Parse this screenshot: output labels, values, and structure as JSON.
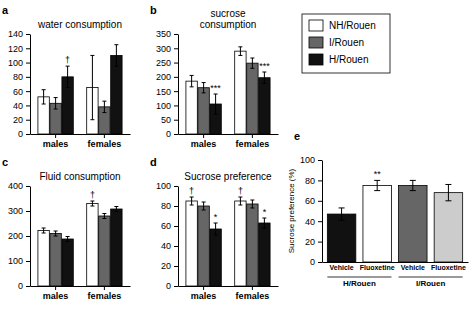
{
  "chart_data": [
    {
      "type": "bar",
      "title": "water consumption",
      "legend": "upper right",
      "categories": [
        "males",
        "females"
      ],
      "series": [
        {
          "name": "NH/Rouen",
          "color": "#ffffff",
          "values": [
            52,
            65
          ],
          "errors": [
            10,
            45
          ]
        },
        {
          "name": "I/Rouen",
          "color": "#666666",
          "values": [
            43,
            38
          ],
          "errors": [
            8,
            8
          ]
        },
        {
          "name": "H/Rouen",
          "color": "#111111",
          "values": [
            80,
            110
          ],
          "errors": [
            15,
            15
          ]
        }
      ],
      "ylim": [
        0,
        140
      ],
      "yticks": [
        0,
        20,
        40,
        60,
        80,
        100,
        120,
        140
      ],
      "annotations": [
        {
          "text": "a"
        },
        {
          "text": "†",
          "series": "H/Rouen",
          "category": "males"
        }
      ]
    },
    {
      "type": "bar",
      "title": "sucrose\nconsumption",
      "categories": [
        "males",
        "females"
      ],
      "series": [
        {
          "name": "NH/Rouen",
          "color": "#ffffff",
          "values": [
            185,
            290
          ],
          "errors": [
            20,
            15
          ]
        },
        {
          "name": "I/Rouen",
          "color": "#666666",
          "values": [
            162,
            248
          ],
          "errors": [
            18,
            18
          ]
        },
        {
          "name": "H/Rouen",
          "color": "#111111",
          "values": [
            105,
            197
          ],
          "errors": [
            35,
            20
          ]
        }
      ],
      "ylim": [
        0,
        350
      ],
      "yticks": [
        0,
        50,
        100,
        150,
        200,
        250,
        300,
        350
      ],
      "annotations": [
        {
          "text": "b"
        },
        {
          "text": "***",
          "series": "H/Rouen",
          "category": "males"
        },
        {
          "text": "***",
          "series": "H/Rouen",
          "category": "females"
        }
      ]
    },
    {
      "type": "bar",
      "title": "Fluid consumption",
      "categories": [
        "males",
        "females"
      ],
      "series": [
        {
          "name": "NH/Rouen",
          "color": "#ffffff",
          "values": [
            222,
            330
          ],
          "errors": [
            10,
            10
          ]
        },
        {
          "name": "I/Rouen",
          "color": "#666666",
          "values": [
            210,
            280
          ],
          "errors": [
            10,
            10
          ]
        },
        {
          "name": "H/Rouen",
          "color": "#111111",
          "values": [
            188,
            308
          ],
          "errors": [
            10,
            10
          ]
        }
      ],
      "ylim": [
        0,
        400
      ],
      "yticks": [
        0,
        100,
        200,
        300,
        400
      ],
      "annotations": [
        {
          "text": "c"
        },
        {
          "text": "†",
          "series": "NH/Rouen",
          "category": "females"
        }
      ]
    },
    {
      "type": "bar",
      "title": "Sucrose preference",
      "categories": [
        "males",
        "females"
      ],
      "series": [
        {
          "name": "NH/Rouen",
          "color": "#ffffff",
          "values": [
            85,
            85
          ],
          "errors": [
            4,
            4
          ]
        },
        {
          "name": "I/Rouen",
          "color": "#666666",
          "values": [
            80,
            82
          ],
          "errors": [
            4,
            4
          ]
        },
        {
          "name": "H/Rouen",
          "color": "#111111",
          "values": [
            57,
            63
          ],
          "errors": [
            6,
            5
          ]
        }
      ],
      "ylim": [
        0,
        100
      ],
      "yticks": [
        0,
        20,
        40,
        60,
        80,
        100
      ],
      "annotations": [
        {
          "text": "d"
        },
        {
          "text": "*",
          "series": "H/Rouen",
          "category": "males"
        },
        {
          "text": "*",
          "series": "H/Rouen",
          "category": "females"
        },
        {
          "text": "†",
          "series": "NH/Rouen",
          "category": "males"
        },
        {
          "text": "†",
          "series": "NH/Rouen",
          "category": "females"
        }
      ]
    },
    {
      "type": "bar",
      "ylabel": "Sucrose preference (%)",
      "groups": [
        "H/Rouen",
        "I/Rouen"
      ],
      "categories": [
        "Vehicle",
        "Fluoxetine",
        "Vehicle",
        "Fluoxetine"
      ],
      "values": [
        47,
        75,
        75,
        68
      ],
      "errors": [
        6,
        5,
        5,
        8
      ],
      "colors": [
        "#111111",
        "white",
        "#666666",
        "#cccccc"
      ],
      "ylim": [
        0,
        100
      ],
      "yticks": [
        0,
        20,
        40,
        60,
        80,
        100
      ],
      "annotations": [
        {
          "text": "e"
        },
        {
          "text": "**",
          "group": "H/Rouen",
          "category": "Fluoxetine"
        }
      ]
    }
  ]
}
